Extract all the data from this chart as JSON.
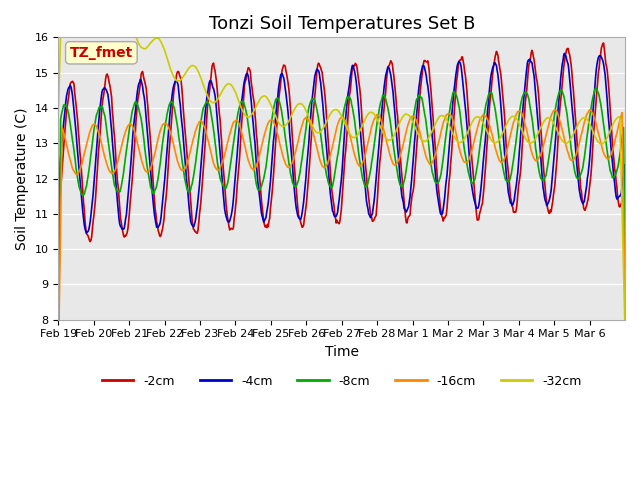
{
  "title": "Tonzi Soil Temperatures Set B",
  "xlabel": "Time",
  "ylabel": "Soil Temperature (C)",
  "ylim": [
    8.0,
    16.0
  ],
  "yticks": [
    8.0,
    9.0,
    10.0,
    11.0,
    12.0,
    13.0,
    14.0,
    15.0,
    16.0
  ],
  "series_colors": [
    "#cc0000",
    "#0000cc",
    "#00aa00",
    "#ff8800",
    "#cccc00"
  ],
  "series_labels": [
    "-2cm",
    "-4cm",
    "-8cm",
    "-16cm",
    "-32cm"
  ],
  "xtick_labels": [
    "Feb 19",
    "Feb 20",
    "Feb 21",
    "Feb 22",
    "Feb 23",
    "Feb 24",
    "Feb 25",
    "Feb 26",
    "Feb 27",
    "Feb 28",
    "Mar 1",
    "Mar 2",
    "Mar 3",
    "Mar 4",
    "Mar 5",
    "Mar 6"
  ],
  "annotation_text": "TZ_fmet",
  "annotation_color": "#cc0000",
  "annotation_bg": "#ffffcc",
  "background_color": "#e8e8e8",
  "title_fontsize": 13,
  "axis_fontsize": 10,
  "tick_fontsize": 8,
  "legend_fontsize": 9
}
